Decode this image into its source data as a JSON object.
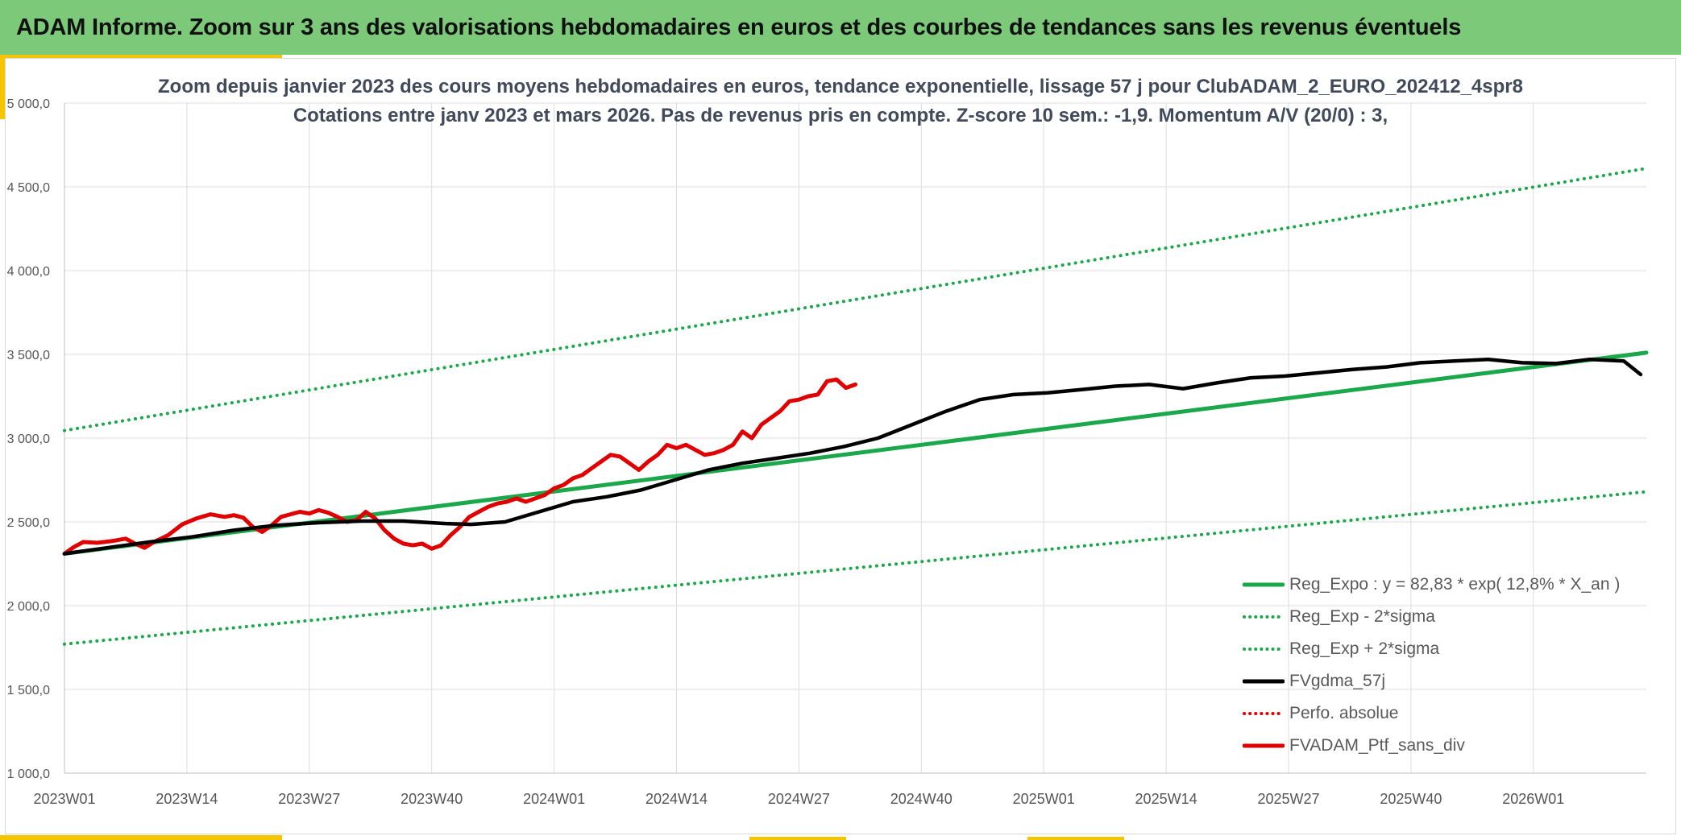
{
  "banner": {
    "title": "ADAM Informe. Zoom sur 3 ans des valorisations hebdomadaires en euros et des courbes de tendances sans les revenus éventuels"
  },
  "chart_data": {
    "type": "line",
    "title": "Zoom depuis janvier 2023 des cours moyens hebdomadaires en euros, tendance exponentielle, lissage 57 j pour ClubADAM_2_EURO_202412_4spr8",
    "subtitle": "Cotations entre janv 2023 et mars 2026. Pas de revenus pris en compte. Z-score 10 sem.: -1,9. Momentum A/V (20/0) : 3,",
    "xlabel": "",
    "ylabel": "",
    "ylim": [
      1000,
      5000
    ],
    "y_ticks": [
      1000,
      1500,
      2000,
      2500,
      3000,
      3500,
      4000,
      4500,
      5000
    ],
    "y_tick_labels": [
      "1 000,0",
      "1 500,0",
      "2 000,0",
      "2 500,0",
      "3 000,0",
      "3 500,0",
      "4 000,0",
      "4 500,0",
      "5 000,0"
    ],
    "x_tick_labels": [
      "2023W01",
      "2023W14",
      "2023W27",
      "2023W40",
      "2024W01",
      "2024W14",
      "2024W27",
      "2024W40",
      "2025W01",
      "2025W14",
      "2025W27",
      "2025W40",
      "2026W01"
    ],
    "x_tick_index": [
      0,
      13,
      26,
      39,
      52,
      65,
      78,
      91,
      104,
      117,
      130,
      143,
      156
    ],
    "x_count": 169,
    "grid": true,
    "legend_position": "bottom-right",
    "series": [
      {
        "name": "Reg_Expo : y = 82,83 * exp( 12,8% *  X_an )",
        "color": "#1aa84a",
        "style": "solid",
        "points": [
          [
            0,
            2310
          ],
          [
            168,
            3510
          ]
        ]
      },
      {
        "name": "Reg_Exp - 2*sigma",
        "color": "#1aa84a",
        "style": "dotted",
        "points": [
          [
            0,
            1770
          ],
          [
            168,
            2680
          ]
        ]
      },
      {
        "name": "Reg_Exp + 2*sigma",
        "color": "#1aa84a",
        "style": "dotted",
        "points": [
          [
            0,
            3045
          ],
          [
            168,
            4610
          ]
        ]
      },
      {
        "name": "FVgdma_57j",
        "color": "#000000",
        "style": "solid",
        "points": [
          [
            0,
            2310
          ],
          [
            5,
            2345
          ],
          [
            10,
            2380
          ],
          [
            15,
            2410
          ],
          [
            20,
            2450
          ],
          [
            25,
            2480
          ],
          [
            30,
            2495
          ],
          [
            35,
            2505
          ],
          [
            40,
            2505
          ],
          [
            45,
            2490
          ],
          [
            48,
            2485
          ],
          [
            52,
            2500
          ],
          [
            56,
            2560
          ],
          [
            60,
            2620
          ],
          [
            64,
            2650
          ],
          [
            68,
            2690
          ],
          [
            72,
            2750
          ],
          [
            76,
            2810
          ],
          [
            80,
            2850
          ],
          [
            84,
            2880
          ],
          [
            88,
            2910
          ],
          [
            92,
            2950
          ],
          [
            96,
            3000
          ],
          [
            100,
            3080
          ],
          [
            104,
            3160
          ],
          [
            108,
            3230
          ],
          [
            112,
            3260
          ],
          [
            116,
            3270
          ],
          [
            120,
            3290
          ],
          [
            124,
            3310
          ],
          [
            128,
            3320
          ],
          [
            132,
            3295
          ],
          [
            136,
            3330
          ],
          [
            140,
            3360
          ],
          [
            144,
            3370
          ],
          [
            148,
            3390
          ],
          [
            152,
            3410
          ],
          [
            156,
            3425
          ],
          [
            160,
            3450
          ],
          [
            164,
            3460
          ],
          [
            168,
            3470
          ],
          [
            172,
            3450
          ],
          [
            176,
            3445
          ],
          [
            180,
            3470
          ],
          [
            184,
            3460
          ],
          [
            186,
            3380
          ]
        ],
        "x_scale": 0.9
      },
      {
        "name": "Perfo. absolue",
        "color": "#e00000",
        "style": "dotted",
        "points": []
      },
      {
        "name": "FVADAM_Ptf_sans_div",
        "color": "#e00000",
        "style": "solid",
        "points": [
          [
            0,
            2310
          ],
          [
            2,
            2350
          ],
          [
            4,
            2380
          ],
          [
            7,
            2375
          ],
          [
            10,
            2385
          ],
          [
            13,
            2400
          ],
          [
            15,
            2370
          ],
          [
            17,
            2345
          ],
          [
            19,
            2380
          ],
          [
            22,
            2420
          ],
          [
            25,
            2485
          ],
          [
            28,
            2520
          ],
          [
            31,
            2545
          ],
          [
            34,
            2530
          ],
          [
            36,
            2540
          ],
          [
            38,
            2525
          ],
          [
            40,
            2470
          ],
          [
            42,
            2440
          ],
          [
            44,
            2480
          ],
          [
            46,
            2530
          ],
          [
            48,
            2545
          ],
          [
            50,
            2560
          ],
          [
            52,
            2550
          ],
          [
            54,
            2570
          ],
          [
            56,
            2555
          ],
          [
            58,
            2530
          ],
          [
            60,
            2500
          ],
          [
            62,
            2510
          ],
          [
            64,
            2560
          ],
          [
            66,
            2520
          ],
          [
            68,
            2450
          ],
          [
            70,
            2400
          ],
          [
            72,
            2370
          ],
          [
            74,
            2360
          ],
          [
            76,
            2370
          ],
          [
            78,
            2340
          ],
          [
            80,
            2360
          ],
          [
            82,
            2420
          ],
          [
            84,
            2470
          ],
          [
            86,
            2530
          ],
          [
            88,
            2560
          ],
          [
            90,
            2590
          ],
          [
            92,
            2610
          ],
          [
            94,
            2620
          ],
          [
            96,
            2640
          ],
          [
            98,
            2620
          ],
          [
            100,
            2640
          ],
          [
            102,
            2660
          ],
          [
            104,
            2700
          ],
          [
            106,
            2720
          ],
          [
            108,
            2760
          ],
          [
            110,
            2780
          ],
          [
            112,
            2820
          ],
          [
            114,
            2860
          ],
          [
            116,
            2900
          ],
          [
            118,
            2890
          ],
          [
            120,
            2850
          ],
          [
            122,
            2810
          ],
          [
            124,
            2860
          ],
          [
            126,
            2900
          ],
          [
            128,
            2960
          ],
          [
            130,
            2940
          ],
          [
            132,
            2960
          ],
          [
            134,
            2930
          ],
          [
            136,
            2900
          ],
          [
            138,
            2910
          ],
          [
            140,
            2930
          ],
          [
            142,
            2960
          ],
          [
            144,
            3040
          ],
          [
            146,
            3000
          ],
          [
            148,
            3080
          ],
          [
            150,
            3120
          ],
          [
            152,
            3160
          ],
          [
            154,
            3220
          ],
          [
            156,
            3230
          ],
          [
            158,
            3250
          ],
          [
            160,
            3260
          ],
          [
            162,
            3340
          ],
          [
            164,
            3350
          ],
          [
            166,
            3300
          ],
          [
            168,
            3320
          ]
        ],
        "x_scale": 0.5
      }
    ]
  },
  "legend": {
    "items": [
      {
        "label": "Reg_Expo : y = 82,83 * exp( 12,8% *  X_an )",
        "color": "#1aa84a",
        "style": "solid"
      },
      {
        "label": "Reg_Exp - 2*sigma",
        "color": "#1aa84a",
        "style": "dotted"
      },
      {
        "label": "Reg_Exp + 2*sigma",
        "color": "#1aa84a",
        "style": "dotted"
      },
      {
        "label": "FVgdma_57j",
        "color": "#000000",
        "style": "solid"
      },
      {
        "label": "Perfo. absolue",
        "color": "#e00000",
        "style": "dotted"
      },
      {
        "label": "FVADAM_Ptf_sans_div",
        "color": "#e00000",
        "style": "solid"
      }
    ]
  }
}
